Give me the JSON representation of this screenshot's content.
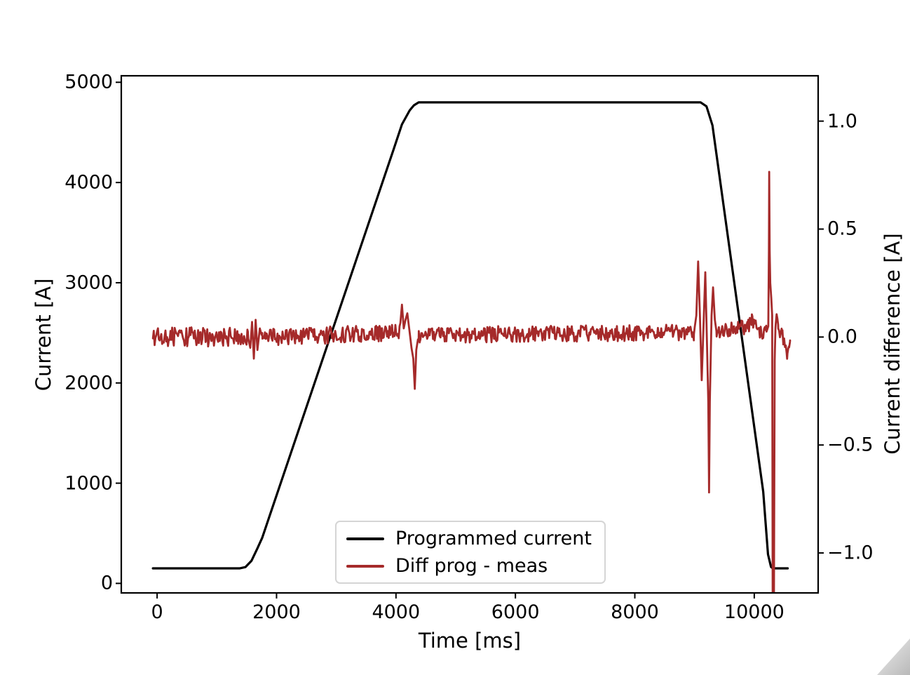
{
  "figure": {
    "background": "#ffffff",
    "axis_color": "#000000",
    "tick_label_color": "#000000",
    "legend_border_color": "#d5d5d5",
    "resize_grip_colors": [
      "#ececec",
      "#b9b9b9"
    ]
  },
  "chart_data": {
    "type": "line",
    "title": "",
    "xlabel": "Time [ms]",
    "ylabel_left": "Current [A]",
    "ylabel_right": "Current difference [A]",
    "grid": false,
    "legend_position": "lower center",
    "xlim": [
      -600,
      11070
    ],
    "ylim_left": [
      -95,
      5065
    ],
    "ylim_right": [
      -1.185,
      1.21
    ],
    "x_ticks": [
      {
        "value": 0,
        "label": "0"
      },
      {
        "value": 2000,
        "label": "2000"
      },
      {
        "value": 4000,
        "label": "4000"
      },
      {
        "value": 6000,
        "label": "6000"
      },
      {
        "value": 8000,
        "label": "8000"
      },
      {
        "value": 10000,
        "label": "10000"
      }
    ],
    "y_ticks_left": [
      {
        "value": 0,
        "label": "0"
      },
      {
        "value": 1000,
        "label": "1000"
      },
      {
        "value": 2000,
        "label": "2000"
      },
      {
        "value": 3000,
        "label": "3000"
      },
      {
        "value": 4000,
        "label": "4000"
      },
      {
        "value": 5000,
        "label": "5000"
      }
    ],
    "y_ticks_right": [
      {
        "value": 1.0,
        "label": "1.0"
      },
      {
        "value": 0.5,
        "label": "0.5"
      },
      {
        "value": 0.0,
        "label": "0.0"
      },
      {
        "value": -0.5,
        "label": "−0.5"
      },
      {
        "value": -1.0,
        "label": "−1.0"
      }
    ],
    "legend": {
      "entries": [
        {
          "label": "Programmed current",
          "color": "#000000"
        },
        {
          "label": "Diff prog - meas",
          "color": "#A52A2A"
        }
      ]
    },
    "series": [
      {
        "name": "Programmed current",
        "axis": "left",
        "color": "#000000",
        "linewidth": 3.2,
        "points": [
          [
            -70,
            150
          ],
          [
            1380,
            150
          ],
          [
            1480,
            163
          ],
          [
            1580,
            225
          ],
          [
            1680,
            350
          ],
          [
            1760,
            455
          ],
          [
            3960,
            4330
          ],
          [
            4100,
            4580
          ],
          [
            4230,
            4720
          ],
          [
            4300,
            4770
          ],
          [
            4380,
            4800
          ],
          [
            9100,
            4800
          ],
          [
            9200,
            4760
          ],
          [
            9300,
            4570
          ],
          [
            10150,
            915
          ],
          [
            10230,
            290
          ],
          [
            10280,
            165
          ],
          [
            10310,
            150
          ],
          [
            10560,
            150
          ]
        ]
      },
      {
        "name": "Diff prog - meas",
        "axis": "right",
        "color": "#A52A2A",
        "linewidth": 2.8,
        "anchors": [
          [
            -70,
            0
          ],
          [
            1520,
            0
          ],
          [
            1560,
            -0.05
          ],
          [
            1590,
            0.07
          ],
          [
            1620,
            -0.1
          ],
          [
            1650,
            0.08
          ],
          [
            1680,
            -0.06
          ],
          [
            1720,
            0.04
          ],
          [
            1760,
            0
          ],
          [
            4060,
            0.02
          ],
          [
            4100,
            0.15
          ],
          [
            4130,
            0.04
          ],
          [
            4160,
            0.08
          ],
          [
            4190,
            0.11
          ],
          [
            4230,
            0.02
          ],
          [
            4260,
            -0.05
          ],
          [
            4290,
            -0.1
          ],
          [
            4315,
            -0.24
          ],
          [
            4340,
            -0.06
          ],
          [
            4380,
            0.01
          ],
          [
            8990,
            0.02
          ],
          [
            9030,
            0.1
          ],
          [
            9060,
            0.35
          ],
          [
            9090,
            0.1
          ],
          [
            9120,
            -0.2
          ],
          [
            9150,
            0.05
          ],
          [
            9180,
            0.3
          ],
          [
            9210,
            -0.05
          ],
          [
            9230,
            -0.3
          ],
          [
            9243,
            -0.72
          ],
          [
            9256,
            -0.3
          ],
          [
            9285,
            0.1
          ],
          [
            9310,
            0.23
          ],
          [
            9340,
            0.08
          ],
          [
            9370,
            0.02
          ],
          [
            9900,
            0.05
          ],
          [
            9960,
            0.08
          ],
          [
            10020,
            0.06
          ],
          [
            10080,
            0.02
          ],
          [
            10200,
            0.02
          ],
          [
            10235,
            0.05
          ],
          [
            10245,
            0.4
          ],
          [
            10250,
            0.765
          ],
          [
            10258,
            0.4
          ],
          [
            10268,
            0.25
          ],
          [
            10285,
            0.18
          ],
          [
            10300,
            0.1
          ],
          [
            10308,
            -1.19
          ],
          [
            10330,
            -1.19
          ],
          [
            10342,
            -0.1
          ],
          [
            10355,
            0.05
          ],
          [
            10375,
            0.09
          ],
          [
            10400,
            0.06
          ],
          [
            10430,
            0.02
          ],
          [
            10460,
            0.04
          ],
          [
            10490,
            -0.02
          ],
          [
            10520,
            -0.05
          ],
          [
            10550,
            -0.1
          ],
          [
            10580,
            -0.06
          ],
          [
            10600,
            -0.04
          ]
        ],
        "noise": {
          "seed": 987654321,
          "step_ms": 14,
          "segments": [
            [
              -70,
              1520,
              0.045
            ],
            [
              1760,
              4060,
              0.04
            ],
            [
              4380,
              8990,
              0.038
            ],
            [
              9370,
              10200,
              0.035
            ],
            [
              10342,
              10600,
              0.025
            ]
          ]
        }
      }
    ]
  }
}
